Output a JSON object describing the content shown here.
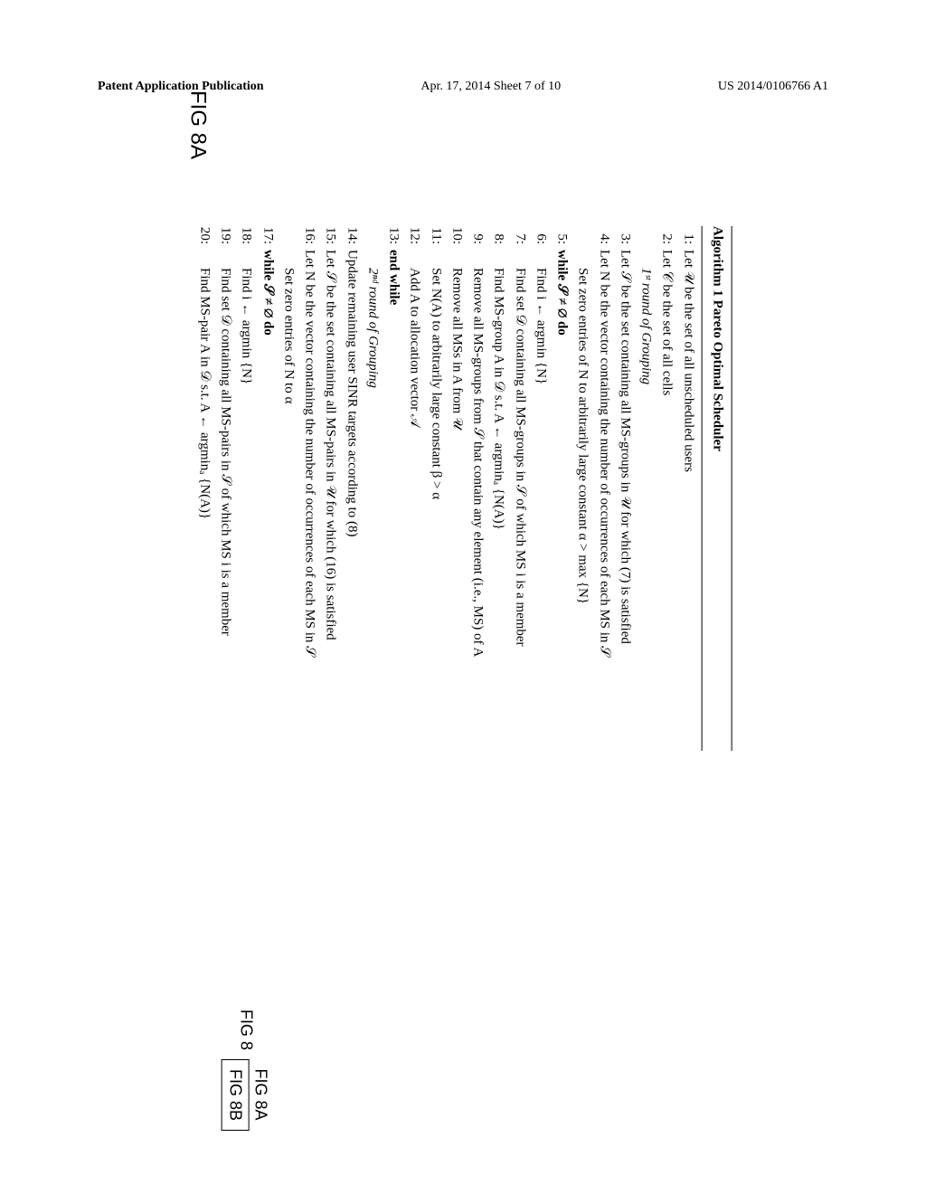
{
  "header": {
    "left": "Patent Application Publication",
    "center": "Apr. 17, 2014  Sheet 7 of 10",
    "right": "US 2014/0106766 A1"
  },
  "figLabelLeft": "FIG 8A",
  "figKey": {
    "main": "FIG 8",
    "topRight": "FIG 8A",
    "bottomRight": "FIG 8B"
  },
  "algorithm": {
    "title": "Algorithm 1 Pareto Optimal Scheduler",
    "lines": [
      {
        "n": "1:",
        "t": "Let 𝒰 be the set of all unscheduled users"
      },
      {
        "n": "2:",
        "t": "Let 𝒞 be the set of all cells"
      },
      {
        "n": "",
        "t": "1ˢᵗ round of Grouping",
        "italic": true,
        "indent": true
      },
      {
        "n": "3:",
        "t": "Let 𝒮 be the set containing all MS-groups in 𝒰 for which (7) is satisfied"
      },
      {
        "n": "4:",
        "t": "Let N be the vector containing the number of occurrences of each MS in 𝒮"
      },
      {
        "n": "",
        "t": "Set zero entries of N to arbitrarily large constant α > max {N}",
        "indent": true
      },
      {
        "n": "5:",
        "t": "while 𝒮 ≠ ∅ do",
        "bold": true
      },
      {
        "n": "6:",
        "t": "Find i ← argmin {N}",
        "indent": true
      },
      {
        "n": "7:",
        "t": "Find set 𝒟 containing all MS-groups in 𝒮 of which MS i is a member",
        "indent": true
      },
      {
        "n": "8:",
        "t": "Find MS-group A in 𝒟 s.t. A ← argminₐ {N(A)}",
        "indent": true
      },
      {
        "n": "9:",
        "t": "Remove all MS-groups from 𝒮 that contain any element (i.e., MS) of A",
        "indent": true
      },
      {
        "n": "10:",
        "t": "Remove all MSs in A from 𝒰",
        "indent": true
      },
      {
        "n": "11:",
        "t": "Set N(A) to arbitrarily large constant β > α",
        "indent": true
      },
      {
        "n": "12:",
        "t": "Add A to allocation vector 𝒜",
        "indent": true
      },
      {
        "n": "13:",
        "t": "end while",
        "bold": true
      },
      {
        "n": "",
        "t": "2ⁿᵈ round of Grouping",
        "italic": true,
        "indent": true
      },
      {
        "n": "14:",
        "t": "Update remaining user SINR targets according to (8)"
      },
      {
        "n": "15:",
        "t": "Let 𝒮 be the set containing all MS-pairs in 𝒰 for which (16) is satisfied"
      },
      {
        "n": "16:",
        "t": "Let N be the vector containing the number of occurrences of each MS in 𝒮"
      },
      {
        "n": "",
        "t": "Set zero entries of N to α",
        "indent": true
      },
      {
        "n": "17:",
        "t": "while 𝒮 ≠ ∅ do",
        "bold": true
      },
      {
        "n": "18:",
        "t": "Find i ← argmin {N}",
        "indent": true
      },
      {
        "n": "19:",
        "t": "Find set 𝒟 containing all MS-pairs in 𝒮 of which MS i is a member",
        "indent": true
      },
      {
        "n": "20:",
        "t": "Find MS-pair A in 𝒟 s.t. A ← argminₐ {N(A)}",
        "indent": true
      }
    ]
  }
}
